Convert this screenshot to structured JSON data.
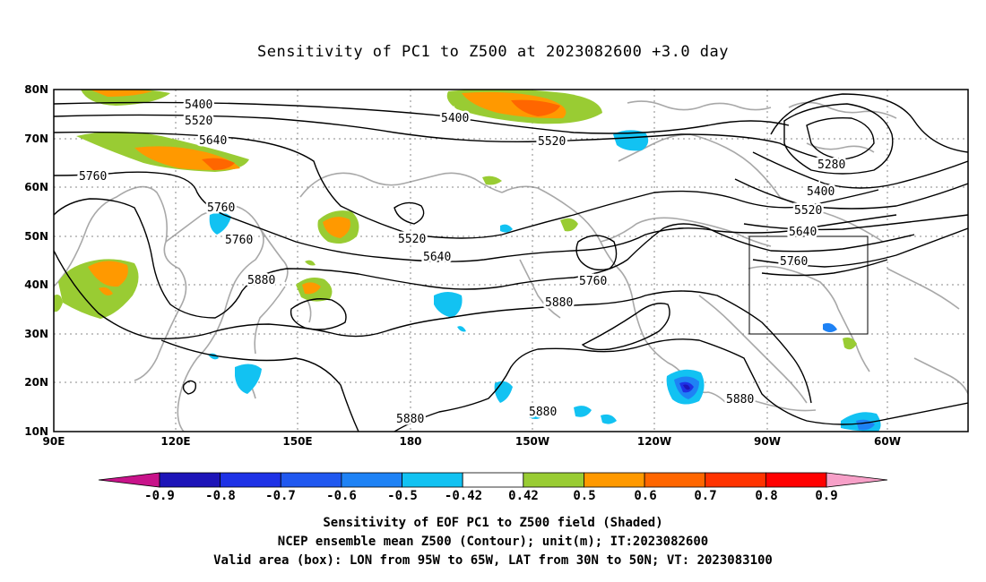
{
  "title": "Sensitivity of PC1 to Z500 at 2023082600 +3.0 day",
  "map": {
    "lat_labels": [
      "80N",
      "70N",
      "60N",
      "50N",
      "40N",
      "30N",
      "20N",
      "10N"
    ],
    "lon_labels": [
      "90E",
      "120E",
      "150E",
      "180",
      "150W",
      "120W",
      "90W",
      "60W"
    ],
    "contour_labels": [
      "5400",
      "5520",
      "5640",
      "5760",
      "5760",
      "5760",
      "5880",
      "5400",
      "5520",
      "5520",
      "5640",
      "5760",
      "5880",
      "5880",
      "5880",
      "5880",
      "5280",
      "5400",
      "5520",
      "5640",
      "5760"
    ],
    "valid_box": {
      "lon_from": "95W",
      "lon_to": "65W",
      "lat_from": "30N",
      "lat_to": "50N"
    }
  },
  "colorbar": {
    "labels": [
      "-0.9",
      "-0.8",
      "-0.7",
      "-0.6",
      "-0.5",
      "-0.42",
      "0.42",
      "0.5",
      "0.6",
      "0.7",
      "0.8",
      "0.9"
    ],
    "colors": [
      "#c8138a",
      "#1d14b8",
      "#1e32e6",
      "#2058f0",
      "#1e82f5",
      "#12c2f2",
      "#ffffff",
      "#99cc33",
      "#ff9900",
      "#ff6600",
      "#ff3300",
      "#ff0000",
      "#f7a0c8"
    ]
  },
  "captions": [
    "Sensitivity of EOF PC1 to Z500 field (Shaded)",
    "NCEP ensemble mean Z500 (Contour); unit(m); IT:2023082600",
    "Valid area (box): LON from 95W to 65W, LAT from 30N to 50N; VT: 2023083100"
  ]
}
